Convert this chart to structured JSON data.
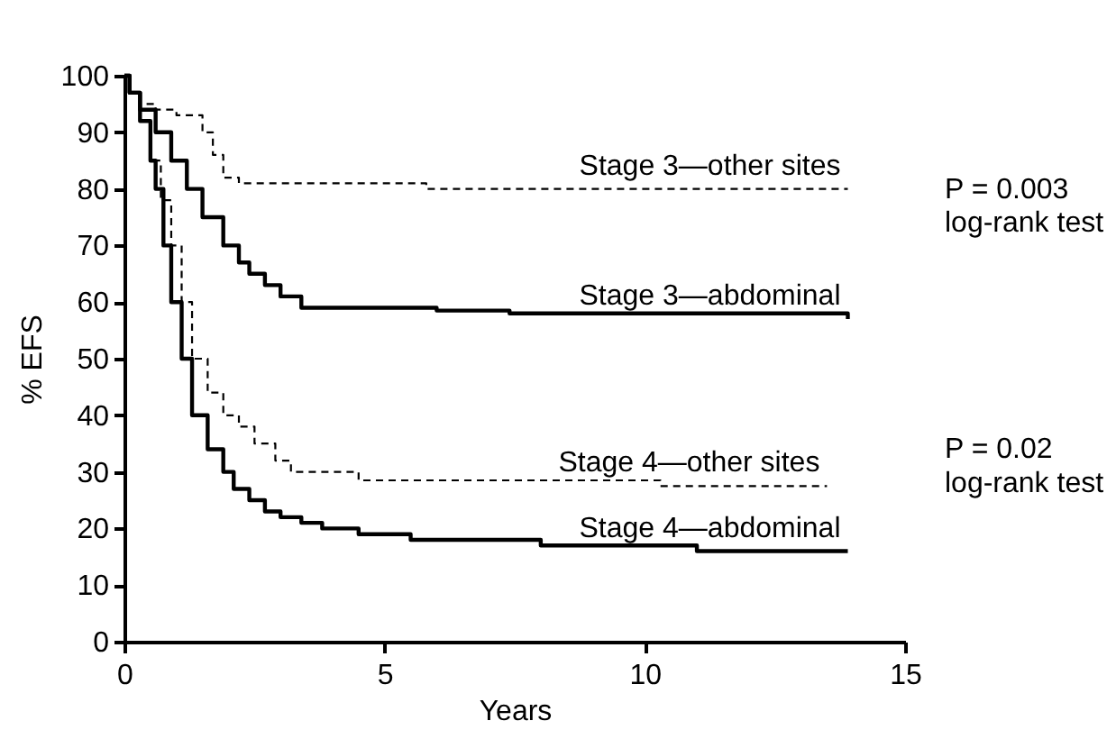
{
  "chart_data": {
    "type": "step",
    "xlabel": "Years",
    "ylabel": "% EFS",
    "xlim": [
      0,
      15
    ],
    "ylim": [
      0,
      100
    ],
    "xticks": [
      0,
      5,
      10,
      15
    ],
    "yticks": [
      0,
      10,
      20,
      30,
      40,
      50,
      60,
      70,
      80,
      90,
      100
    ],
    "grid": false,
    "annotations": [
      "P = 0.003",
      "log-rank test",
      "P = 0.02",
      "log-rank test"
    ],
    "series": [
      {
        "name": "Stage 3—other sites",
        "color": "#000000",
        "line_style": "dashed",
        "x": [
          0,
          0.1,
          0.3,
          0.6,
          1.0,
          1.5,
          1.7,
          1.9,
          2.2,
          5.8,
          13.9
        ],
        "values": [
          100,
          97,
          95,
          94,
          93,
          90,
          86,
          82,
          81,
          80,
          80
        ]
      },
      {
        "name": "Stage 3—abdominal",
        "color": "#000000",
        "line_style": "solid",
        "x": [
          0,
          0.1,
          0.3,
          0.6,
          0.9,
          1.2,
          1.5,
          1.9,
          2.2,
          2.4,
          2.7,
          3.0,
          3.4,
          6.0,
          7.4,
          13.9
        ],
        "values": [
          100,
          97,
          94,
          90,
          85,
          80,
          75,
          70,
          67,
          65,
          63,
          61,
          59,
          58.5,
          58,
          57
        ]
      },
      {
        "name": "Stage 4—other sites",
        "color": "#000000",
        "line_style": "dashed",
        "x": [
          0,
          0.1,
          0.3,
          0.5,
          0.7,
          0.9,
          1.1,
          1.3,
          1.6,
          1.9,
          2.2,
          2.5,
          2.9,
          3.2,
          4.5,
          10.3,
          13.5
        ],
        "values": [
          100,
          97,
          92,
          85,
          78,
          70,
          60,
          50,
          44,
          40,
          38,
          35,
          32,
          30,
          28.5,
          27.5,
          27.5
        ]
      },
      {
        "name": "Stage 4—abdominal",
        "color": "#000000",
        "line_style": "solid",
        "x": [
          0,
          0.1,
          0.3,
          0.5,
          0.6,
          0.75,
          0.9,
          1.1,
          1.3,
          1.6,
          1.9,
          2.1,
          2.4,
          2.7,
          3.0,
          3.4,
          3.8,
          4.5,
          5.5,
          8.0,
          11.0,
          13.9
        ],
        "values": [
          100,
          97,
          92,
          85,
          80,
          70,
          60,
          50,
          40,
          34,
          30,
          27,
          25,
          23,
          22,
          21,
          20,
          19,
          18,
          17,
          16,
          16
        ]
      }
    ]
  }
}
